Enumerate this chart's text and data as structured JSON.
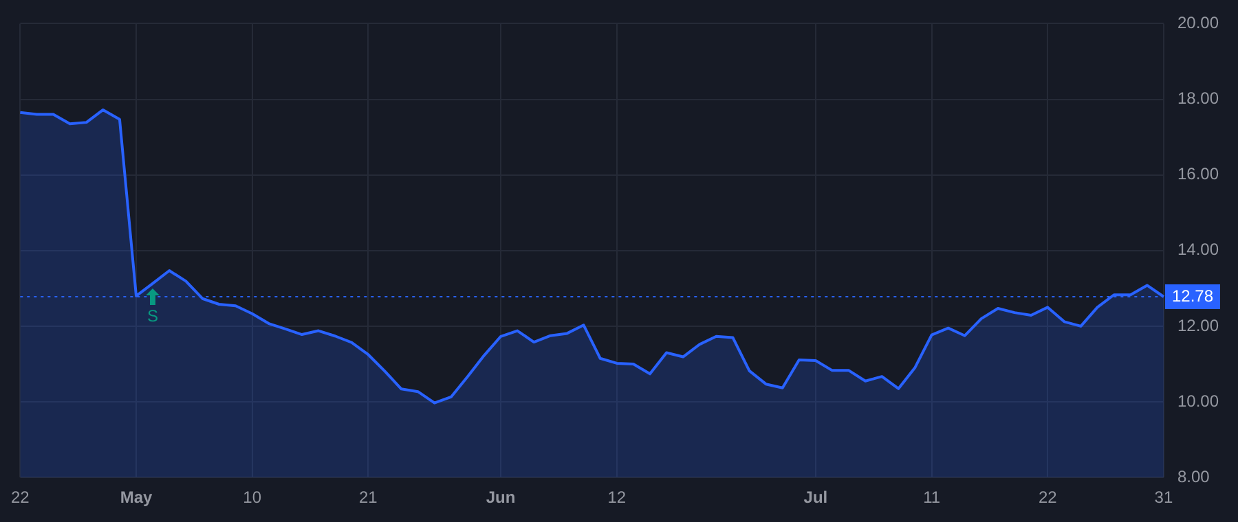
{
  "chart_data": {
    "type": "area",
    "categories": [
      "22",
      null,
      null,
      null,
      null,
      null,
      null,
      "May",
      null,
      null,
      null,
      null,
      null,
      null,
      "10",
      null,
      null,
      null,
      null,
      null,
      null,
      "21",
      null,
      null,
      null,
      null,
      null,
      null,
      null,
      "Jun",
      null,
      null,
      null,
      null,
      null,
      null,
      "12",
      null,
      null,
      null,
      null,
      null,
      null,
      null,
      null,
      null,
      null,
      null,
      "Jul",
      null,
      null,
      null,
      null,
      null,
      null,
      "11",
      null,
      null,
      null,
      null,
      null,
      null,
      "22",
      null,
      null,
      null,
      null,
      null,
      null,
      "31"
    ],
    "series": [
      {
        "color": "#2962ff",
        "values": [
          17.65,
          17.6,
          17.6,
          17.35,
          17.39,
          17.72,
          17.47,
          12.8,
          13.13,
          13.47,
          13.19,
          12.73,
          12.58,
          12.54,
          12.33,
          12.07,
          11.93,
          11.78,
          11.88,
          11.74,
          11.57,
          11.25,
          10.81,
          10.34,
          10.27,
          9.97,
          10.13,
          10.67,
          11.23,
          11.73,
          11.88,
          11.58,
          11.75,
          11.81,
          12.03,
          11.15,
          11.02,
          11.0,
          10.74,
          11.3,
          11.19,
          11.52,
          11.73,
          11.7,
          10.82,
          10.47,
          10.37,
          11.11,
          11.09,
          10.83,
          10.83,
          10.55,
          10.67,
          10.35,
          10.91,
          11.77,
          11.95,
          11.75,
          12.2,
          12.47,
          12.36,
          12.29,
          12.5,
          12.12,
          12.0,
          12.5,
          12.83,
          12.83,
          13.08,
          12.78
        ]
      }
    ],
    "ylim": [
      8,
      20
    ],
    "yticks": [
      {
        "value": 8,
        "label": "8.00"
      },
      {
        "value": 10,
        "label": "10.00"
      },
      {
        "value": 12,
        "label": "12.00"
      },
      {
        "value": 14,
        "label": "14.00"
      },
      {
        "value": 16,
        "label": "16.00"
      },
      {
        "value": 18,
        "label": "18.00"
      },
      {
        "value": 20,
        "label": "20.00"
      }
    ],
    "ref_lines": [
      {
        "axis": "y",
        "value": 12.78,
        "label": "12.78",
        "color": "#2962ff",
        "line_style": "dotted"
      }
    ],
    "annotations": [
      "S"
    ],
    "grid": true,
    "legend": false,
    "marker": "none",
    "line_style": "solid"
  }
}
